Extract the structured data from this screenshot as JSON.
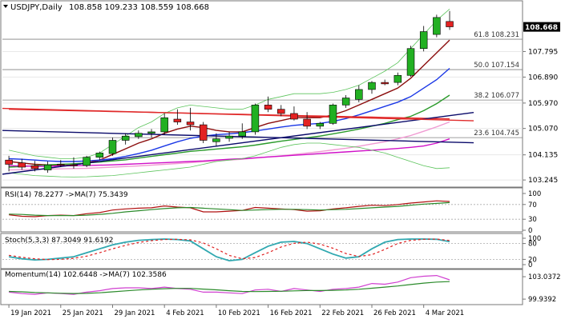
{
  "header": {
    "symbol": "USDJPY,Daily",
    "ohlc": "108.858 109.233 108.559 108.668"
  },
  "colors": {
    "bull": "#22b022",
    "bear": "#e32222",
    "grid": "#c8c8c8",
    "fib": "#808080",
    "ma_brown": "#8b0d0d",
    "ma_blue": "#1a37e6",
    "ma_green": "#2a9a2a",
    "ma_pink": "#f09ad2",
    "ma_red": "#e02a2a",
    "ma_magenta": "#d010c8",
    "bb": "#5cc45c",
    "trend": "#0a0a6a",
    "rsi_line": "#b01010",
    "rsi_ma": "#2a8a2a",
    "stoch_main": "#30a8b0",
    "stoch_signal": "#e02020",
    "mom_main": "#d040d0",
    "mom_ma": "#2a8a2a",
    "price_box_bg": "#000000",
    "price_box_fg": "#ffffff"
  },
  "chart_data": [
    {
      "type": "candlestick",
      "title": "USDJPY,Daily",
      "ylim": [
        103.05,
        109.45
      ],
      "y_ticks": [
        108.668,
        107.795,
        106.89,
        105.97,
        105.07,
        104.135,
        103.245
      ],
      "y_tick_labels": [
        "108.668",
        "107.795",
        "106.890",
        "105.970",
        "105.070",
        "104.135",
        "103.245"
      ],
      "x_labels": [
        "19 Jan 2021",
        "25 Jan 2021",
        "29 Jan 2021",
        "4 Feb 2021",
        "10 Feb 2021",
        "16 Feb 2021",
        "22 Feb 2021",
        "26 Feb 2021",
        "4 Mar 2021"
      ],
      "x_label_index": [
        0,
        4,
        8,
        12,
        16,
        20,
        24,
        28,
        32
      ],
      "candles": [
        {
          "o": 103.95,
          "h": 104.1,
          "l": 103.55,
          "c": 103.8
        },
        {
          "o": 103.85,
          "h": 104.0,
          "l": 103.6,
          "c": 103.7
        },
        {
          "o": 103.75,
          "h": 103.92,
          "l": 103.55,
          "c": 103.65
        },
        {
          "o": 103.6,
          "h": 103.9,
          "l": 103.5,
          "c": 103.78
        },
        {
          "o": 103.8,
          "h": 103.95,
          "l": 103.7,
          "c": 103.78
        },
        {
          "o": 103.78,
          "h": 104.05,
          "l": 103.65,
          "c": 103.75
        },
        {
          "o": 103.76,
          "h": 104.1,
          "l": 103.7,
          "c": 104.05
        },
        {
          "o": 104.05,
          "h": 104.25,
          "l": 103.95,
          "c": 104.2
        },
        {
          "o": 104.18,
          "h": 104.75,
          "l": 104.1,
          "c": 104.65
        },
        {
          "o": 104.65,
          "h": 104.9,
          "l": 104.5,
          "c": 104.8
        },
        {
          "o": 104.78,
          "h": 105.0,
          "l": 104.7,
          "c": 104.9
        },
        {
          "o": 104.9,
          "h": 105.05,
          "l": 104.75,
          "c": 104.95
        },
        {
          "o": 104.95,
          "h": 105.6,
          "l": 104.85,
          "c": 105.45
        },
        {
          "o": 105.4,
          "h": 105.75,
          "l": 105.2,
          "c": 105.3
        },
        {
          "o": 105.3,
          "h": 105.8,
          "l": 105.0,
          "c": 105.2
        },
        {
          "o": 105.2,
          "h": 105.3,
          "l": 104.55,
          "c": 104.65
        },
        {
          "o": 104.6,
          "h": 104.9,
          "l": 104.45,
          "c": 104.7
        },
        {
          "o": 104.72,
          "h": 104.95,
          "l": 104.6,
          "c": 104.8
        },
        {
          "o": 104.8,
          "h": 105.25,
          "l": 104.7,
          "c": 104.95
        },
        {
          "o": 104.95,
          "h": 105.95,
          "l": 104.85,
          "c": 105.9
        },
        {
          "o": 105.9,
          "h": 106.2,
          "l": 105.65,
          "c": 105.75
        },
        {
          "o": 105.75,
          "h": 105.9,
          "l": 105.5,
          "c": 105.6
        },
        {
          "o": 105.6,
          "h": 105.85,
          "l": 105.35,
          "c": 105.4
        },
        {
          "o": 105.4,
          "h": 105.65,
          "l": 105.05,
          "c": 105.15
        },
        {
          "o": 105.15,
          "h": 105.3,
          "l": 105.05,
          "c": 105.25
        },
        {
          "o": 105.25,
          "h": 105.95,
          "l": 105.2,
          "c": 105.9
        },
        {
          "o": 105.9,
          "h": 106.25,
          "l": 105.8,
          "c": 106.15
        },
        {
          "o": 106.1,
          "h": 106.6,
          "l": 106.0,
          "c": 106.45
        },
        {
          "o": 106.45,
          "h": 106.75,
          "l": 106.3,
          "c": 106.7
        },
        {
          "o": 106.7,
          "h": 106.8,
          "l": 106.6,
          "c": 106.65
        },
        {
          "o": 106.7,
          "h": 107.05,
          "l": 106.6,
          "c": 106.95
        },
        {
          "o": 106.95,
          "h": 108.0,
          "l": 106.9,
          "c": 107.9
        },
        {
          "o": 107.9,
          "h": 108.7,
          "l": 107.8,
          "c": 108.5
        },
        {
          "o": 108.4,
          "h": 109.1,
          "l": 108.3,
          "c": 109.0
        },
        {
          "o": 108.86,
          "h": 109.23,
          "l": 108.56,
          "c": 108.67
        }
      ],
      "overlays": [
        {
          "color_key": "ma_brown",
          "y": [
            103.9,
            103.85,
            103.8,
            103.78,
            103.75,
            103.78,
            103.85,
            103.95,
            104.15,
            104.35,
            104.55,
            104.7,
            104.9,
            105.05,
            105.15,
            105.1,
            105.0,
            104.95,
            104.95,
            105.1,
            105.25,
            105.35,
            105.45,
            105.45,
            105.45,
            105.55,
            105.7,
            105.9,
            106.1,
            106.3,
            106.5,
            106.85,
            107.3,
            107.75,
            108.2
          ]
        },
        {
          "color_key": "ma_blue",
          "y": [
            104.0,
            103.98,
            103.95,
            103.92,
            103.9,
            103.9,
            103.92,
            103.95,
            104.0,
            104.08,
            104.18,
            104.3,
            104.45,
            104.6,
            104.72,
            104.8,
            104.85,
            104.88,
            104.92,
            104.98,
            105.05,
            105.12,
            105.18,
            105.22,
            105.25,
            105.32,
            105.42,
            105.55,
            105.7,
            105.85,
            106.0,
            106.2,
            106.5,
            106.8,
            107.2
          ]
        },
        {
          "color_key": "ma_green",
          "y": [
            103.7,
            103.72,
            103.75,
            103.78,
            103.8,
            103.82,
            103.85,
            103.88,
            103.92,
            103.96,
            104.02,
            104.08,
            104.14,
            104.2,
            104.26,
            104.3,
            104.34,
            104.38,
            104.42,
            104.48,
            104.55,
            104.62,
            104.68,
            104.74,
            104.8,
            104.88,
            104.96,
            105.05,
            105.15,
            105.25,
            105.38,
            105.5,
            105.7,
            105.95,
            106.25
          ]
        },
        {
          "color_key": "ma_pink",
          "y": [
            103.6,
            103.61,
            103.62,
            103.63,
            103.64,
            103.65,
            103.66,
            103.68,
            103.7,
            103.72,
            103.74,
            103.77,
            103.8,
            103.83,
            103.86,
            103.89,
            103.92,
            103.95,
            103.98,
            104.02,
            104.06,
            104.1,
            104.15,
            104.2,
            104.25,
            104.31,
            104.37,
            104.44,
            104.52,
            104.6,
            104.7,
            104.82,
            104.97,
            105.13,
            105.3
          ]
        },
        {
          "color_key": "ma_red",
          "y": [
            105.75,
            105.74,
            105.73,
            105.72,
            105.71,
            105.7,
            105.69,
            105.68,
            105.67,
            105.66,
            105.65,
            105.64,
            105.63,
            105.62,
            105.61,
            105.6,
            105.59,
            105.58,
            105.57,
            105.56,
            105.55,
            105.54,
            105.53,
            105.52,
            105.51,
            105.5,
            105.49,
            105.48,
            105.47,
            105.46,
            105.45,
            105.44,
            105.43,
            105.42,
            105.41
          ]
        },
        {
          "color_key": "ma_magenta",
          "y": [
            103.75,
            103.74,
            103.73,
            103.73,
            103.74,
            103.75,
            103.76,
            103.77,
            103.78,
            103.8,
            103.82,
            103.84,
            103.86,
            103.88,
            103.9,
            103.92,
            103.95,
            103.98,
            104.0,
            104.03,
            104.06,
            104.09,
            104.12,
            104.15,
            104.18,
            104.21,
            104.24,
            104.27,
            104.3,
            104.33,
            104.36,
            104.4,
            104.45,
            104.55,
            104.7
          ]
        },
        {
          "color_key": "bb",
          "dash": "",
          "y": [
            104.3,
            104.2,
            104.1,
            104.05,
            104.0,
            104.0,
            104.05,
            104.2,
            104.5,
            104.8,
            105.1,
            105.3,
            105.6,
            105.8,
            105.9,
            105.85,
            105.8,
            105.75,
            105.75,
            105.9,
            106.1,
            106.2,
            106.3,
            106.3,
            106.3,
            106.35,
            106.45,
            106.6,
            106.85,
            107.1,
            107.4,
            107.9,
            108.4,
            108.9,
            109.3
          ]
        },
        {
          "color_key": "bb",
          "dash": "",
          "y": [
            103.5,
            103.45,
            103.4,
            103.38,
            103.36,
            103.35,
            103.36,
            103.38,
            103.4,
            103.45,
            103.5,
            103.55,
            103.6,
            103.65,
            103.7,
            103.8,
            103.9,
            103.95,
            104.0,
            104.1,
            104.25,
            104.4,
            104.5,
            104.55,
            104.55,
            104.5,
            104.45,
            104.4,
            104.3,
            104.2,
            104.05,
            103.9,
            103.75,
            103.65,
            103.68
          ]
        }
      ],
      "trendlines": [
        {
          "color_key": "trend",
          "from": {
            "i": -0.5,
            "y": 105.0
          },
          "to": {
            "i": 34,
            "y": 104.6
          }
        },
        {
          "color_key": "trend",
          "from": {
            "i": -0.5,
            "y": 103.45
          },
          "to": {
            "i": 34,
            "y": 105.45
          }
        },
        {
          "color_key": "ma_red",
          "from": {
            "i": -0.5,
            "y": 105.78
          },
          "to": {
            "i": 34,
            "y": 105.38
          }
        }
      ],
      "fib_levels": [
        {
          "label": "61.8 108.231",
          "value": 108.231
        },
        {
          "label": "50.0 107.154",
          "value": 107.154
        },
        {
          "label": "38.2 106.077",
          "value": 106.077
        },
        {
          "label": "23.6 104.745",
          "value": 104.745
        }
      ],
      "last_price_label": "108.668",
      "last_price": 108.668
    },
    {
      "type": "line",
      "title": "RSI(14) 78.2277 ->MA(7) 75.3439",
      "ylim": [
        0,
        100
      ],
      "y_ticks": [
        100,
        70,
        30,
        0
      ],
      "y_tick_labels": [
        "100",
        "70",
        "30",
        "0"
      ],
      "levels": [
        70,
        30
      ],
      "series": [
        {
          "color_key": "rsi_line",
          "values": [
            42,
            38,
            37,
            40,
            41,
            40,
            45,
            48,
            55,
            58,
            60,
            61,
            66,
            63,
            61,
            50,
            50,
            52,
            54,
            62,
            60,
            58,
            56,
            52,
            53,
            58,
            61,
            65,
            68,
            67,
            70,
            74,
            77,
            80,
            78.2
          ]
        },
        {
          "color_key": "rsi_ma",
          "values": [
            44,
            43,
            41,
            40,
            40,
            40,
            41,
            43,
            46,
            50,
            53,
            56,
            59,
            61,
            62,
            60,
            58,
            56,
            54,
            55,
            56,
            57,
            57,
            56,
            55,
            56,
            57,
            59,
            61,
            63,
            65,
            68,
            71,
            73,
            75.3
          ]
        }
      ]
    },
    {
      "type": "line",
      "title": "Stoch(5,3,3) 87.3049 91.6192",
      "ylim": [
        0,
        100
      ],
      "y_ticks": [
        100,
        80,
        20,
        0
      ],
      "y_tick_labels": [
        "100",
        "80",
        "20",
        "0"
      ],
      "levels": [
        80,
        20
      ],
      "series": [
        {
          "color_key": "stoch_main",
          "values": [
            30,
            22,
            18,
            20,
            25,
            30,
            45,
            60,
            75,
            85,
            92,
            95,
            97,
            95,
            90,
            60,
            30,
            15,
            20,
            45,
            70,
            85,
            88,
            80,
            60,
            40,
            25,
            30,
            60,
            85,
            95,
            97,
            97,
            96,
            87.3
          ]
        },
        {
          "color_key": "stoch_signal",
          "dash": "3,3",
          "values": [
            35,
            28,
            22,
            19,
            20,
            24,
            32,
            45,
            60,
            73,
            84,
            91,
            95,
            96,
            94,
            82,
            60,
            35,
            22,
            27,
            45,
            67,
            81,
            85,
            78,
            62,
            42,
            31,
            38,
            58,
            80,
            92,
            96,
            97,
            91.6
          ]
        }
      ]
    },
    {
      "type": "line",
      "title": "Momentum(14) 102.6448 ->MA(7) 102.3586",
      "ylim": [
        99.4,
        103.6
      ],
      "y_ticks": [
        103.0372,
        99.9392
      ],
      "y_tick_labels": [
        "103.0372",
        "99.9392"
      ],
      "series": [
        {
          "color_key": "mom_main",
          "values": [
            100.9,
            100.7,
            100.6,
            100.8,
            100.7,
            100.6,
            100.9,
            101.1,
            101.4,
            101.5,
            101.5,
            101.4,
            101.6,
            101.4,
            101.3,
            100.9,
            100.9,
            100.8,
            100.7,
            101.2,
            101.3,
            101.0,
            101.4,
            101.2,
            101.0,
            101.3,
            101.4,
            101.6,
            102.1,
            102.0,
            102.3,
            102.9,
            103.1,
            103.2,
            102.6
          ]
        },
        {
          "color_key": "mom_ma",
          "values": [
            101.0,
            100.95,
            100.85,
            100.8,
            100.75,
            100.72,
            100.74,
            100.82,
            100.95,
            101.08,
            101.2,
            101.3,
            101.38,
            101.42,
            101.42,
            101.32,
            101.22,
            101.1,
            101.0,
            100.98,
            101.0,
            101.02,
            101.08,
            101.12,
            101.12,
            101.16,
            101.2,
            101.3,
            101.45,
            101.6,
            101.75,
            101.95,
            102.15,
            102.3,
            102.36
          ]
        }
      ]
    }
  ]
}
